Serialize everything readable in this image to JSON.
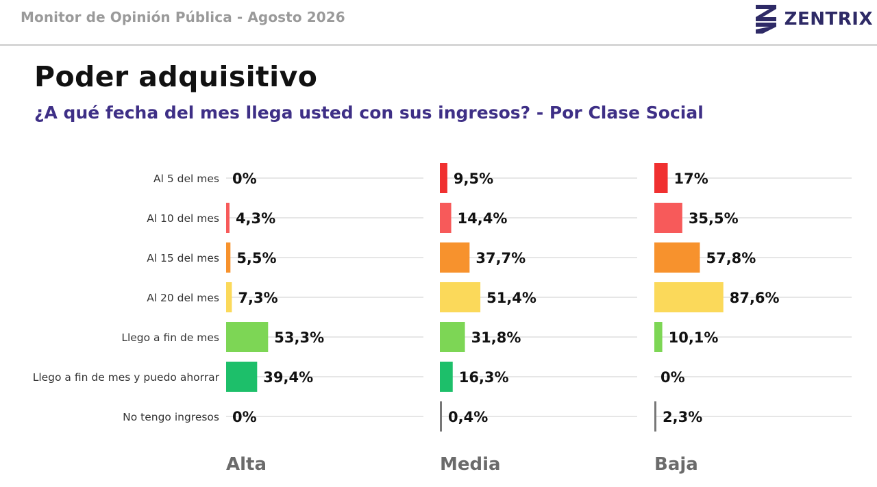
{
  "header": {
    "report_title": "Monitor de Opinión Pública - Agosto 2026",
    "logo_text": "ZENTRIX"
  },
  "title": "Poder adquisitivo",
  "subtitle": "¿A qué fecha del mes llega usted con sus ingresos?  - Por Clase Social",
  "colors": {
    "category_colors": [
      "#f03030",
      "#f75a5a",
      "#f7922d",
      "#fbd95a",
      "#7dd655",
      "#1dbf6a",
      "#777777"
    ],
    "grid": "#e6e6e6",
    "label_text": "#333333",
    "value_text": "#111111",
    "panel_label": "#6b6b6b"
  },
  "chart_data": {
    "type": "bar",
    "orientation": "horizontal",
    "categories": [
      "Al 5 del mes",
      "Al 10 del mes",
      "Al 15 del mes",
      "Al 20 del mes",
      "Llego a fin de mes",
      "Llego a fin de mes y puedo ahorrar",
      "No tengo ingresos"
    ],
    "series": [
      {
        "name": "Alta",
        "values": [
          0,
          4.3,
          5.5,
          7.3,
          53.3,
          39.4,
          0
        ],
        "labels": [
          "0%",
          "4,3%",
          "5,5%",
          "7,3%",
          "53,3%",
          "39,4%",
          "0%"
        ]
      },
      {
        "name": "Media",
        "values": [
          9.5,
          14.4,
          37.7,
          51.4,
          31.8,
          16.3,
          0.4
        ],
        "labels": [
          "9,5%",
          "14,4%",
          "37,7%",
          "51,4%",
          "31,8%",
          "16,3%",
          "0,4%"
        ]
      },
      {
        "name": "Baja",
        "values": [
          17,
          35.5,
          57.8,
          87.6,
          10.1,
          0,
          2.3
        ],
        "labels": [
          "17%",
          "35,5%",
          "57,8%",
          "87,6%",
          "10,1%",
          "0%",
          "2,3%"
        ]
      }
    ],
    "xlim": [
      0,
      100
    ],
    "grid": true,
    "legend": "none"
  }
}
